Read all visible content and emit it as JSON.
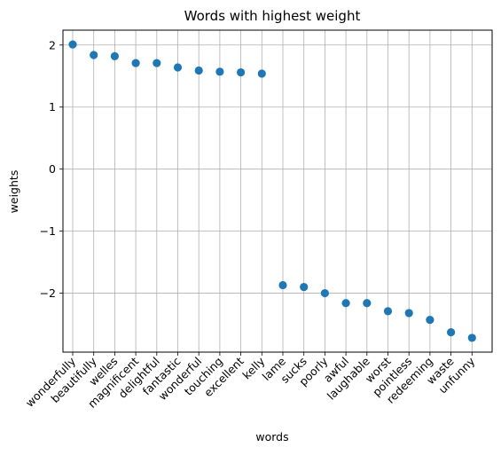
{
  "chart_data": {
    "type": "scatter",
    "title": "Words with highest weight",
    "xlabel": "words",
    "ylabel": "weights",
    "categories": [
      "wonderfully",
      "beautifully",
      "welles",
      "magnificent",
      "delightful",
      "fantastic",
      "wonderful",
      "touching",
      "excellent",
      "kelly",
      "lame",
      "sucks",
      "poorly",
      "awful",
      "laughable",
      "worst",
      "pointless",
      "redeeming",
      "waste",
      "unfunny"
    ],
    "values": [
      2.01,
      1.84,
      1.82,
      1.71,
      1.71,
      1.64,
      1.59,
      1.57,
      1.56,
      1.54,
      -1.87,
      -1.9,
      -2.0,
      -2.16,
      -2.16,
      -2.29,
      -2.32,
      -2.43,
      -2.63,
      -2.72
    ],
    "y_ticks": [
      {
        "value": -2,
        "label": "−2"
      },
      {
        "value": -1,
        "label": "−1"
      },
      {
        "value": 0,
        "label": "0"
      },
      {
        "value": 1,
        "label": "1"
      },
      {
        "value": 2,
        "label": "2"
      }
    ],
    "ylim": [
      -2.95,
      2.24
    ],
    "grid": true,
    "marker_color": "#1f77b4",
    "grid_color": "#b0b0b0"
  }
}
